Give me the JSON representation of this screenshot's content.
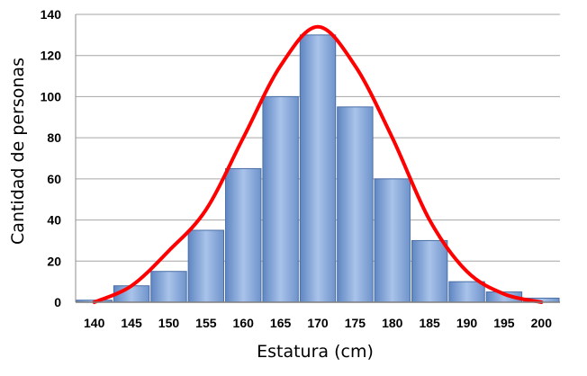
{
  "chart_data": {
    "type": "bar",
    "title": "",
    "xlabel": "Estatura (cm)",
    "ylabel": "Cantidad de personas",
    "grid": true,
    "ylim": [
      0,
      140
    ],
    "yticks": [
      "0",
      "20",
      "40",
      "60",
      "80",
      "100",
      "120",
      "140"
    ],
    "xticks": [
      "140",
      "145",
      "150",
      "155",
      "160",
      "165",
      "170",
      "175",
      "180",
      "185",
      "190",
      "195",
      "200"
    ],
    "bins": [
      {
        "start": 137.5,
        "end": 142.5,
        "value": 1
      },
      {
        "start": 142.5,
        "end": 147.5,
        "value": 8
      },
      {
        "start": 147.5,
        "end": 152.5,
        "value": 15
      },
      {
        "start": 152.5,
        "end": 157.5,
        "value": 35
      },
      {
        "start": 157.5,
        "end": 162.5,
        "value": 65
      },
      {
        "start": 162.5,
        "end": 167.5,
        "value": 100
      },
      {
        "start": 167.5,
        "end": 172.5,
        "value": 130
      },
      {
        "start": 172.5,
        "end": 177.5,
        "value": 95
      },
      {
        "start": 177.5,
        "end": 182.5,
        "value": 60
      },
      {
        "start": 182.5,
        "end": 187.5,
        "value": 30
      },
      {
        "start": 187.5,
        "end": 192.5,
        "value": 10
      },
      {
        "start": 192.5,
        "end": 197.5,
        "value": 5
      },
      {
        "start": 197.5,
        "end": 202.5,
        "value": 2
      }
    ],
    "curve": {
      "type": "line",
      "x": [
        140,
        145,
        150,
        155,
        160,
        165,
        170,
        175,
        180,
        185,
        190,
        195,
        200
      ],
      "y": [
        0,
        8,
        25,
        45,
        80,
        115,
        134,
        115,
        80,
        40,
        15,
        4,
        0
      ]
    },
    "colors": {
      "bar_fill": "#7ea3d6",
      "bar_edge": "#4a6fa5",
      "curve": "#ff0000",
      "grid": "#a6a6a6"
    }
  }
}
